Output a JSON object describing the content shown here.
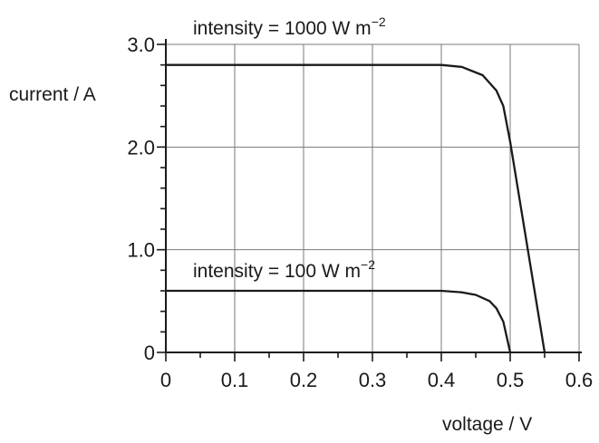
{
  "chart_data": {
    "type": "line",
    "xlabel_text": "voltage",
    "xlabel_unit": "V",
    "ylabel_text": "current",
    "ylabel_unit": "A",
    "xlim": [
      0,
      0.6
    ],
    "ylim": [
      0,
      3.0
    ],
    "x_ticks": [
      "0",
      "0.1",
      "0.2",
      "0.3",
      "0.4",
      "0.5",
      "0.6"
    ],
    "y_ticks": [
      "0",
      "1.0",
      "2.0",
      "3.0"
    ],
    "grid": true,
    "series": [
      {
        "label": "intensity = 1000 W m−2",
        "label_prefix": "intensity = 1000",
        "label_unit": "W m",
        "label_exp": "−2",
        "points": [
          [
            0,
            2.8
          ],
          [
            0.4,
            2.8
          ],
          [
            0.43,
            2.78
          ],
          [
            0.46,
            2.7
          ],
          [
            0.48,
            2.55
          ],
          [
            0.49,
            2.4
          ],
          [
            0.5,
            2.05
          ],
          [
            0.55,
            0
          ]
        ]
      },
      {
        "label": "intensity = 100 W m−2",
        "label_prefix": "intensity = 100",
        "label_unit": "W m",
        "label_exp": "−2",
        "points": [
          [
            0,
            0.6
          ],
          [
            0.4,
            0.6
          ],
          [
            0.43,
            0.585
          ],
          [
            0.45,
            0.56
          ],
          [
            0.47,
            0.5
          ],
          [
            0.48,
            0.43
          ],
          [
            0.49,
            0.3
          ],
          [
            0.5,
            0
          ]
        ]
      }
    ],
    "colors": {
      "line": "#1a1a1a",
      "grid": "#7a7a7a"
    }
  }
}
